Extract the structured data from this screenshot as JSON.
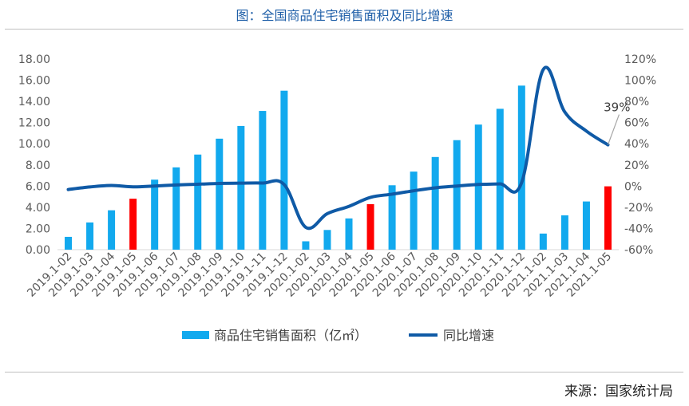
{
  "title": "图：全国商品住宅销售面积及同比增速",
  "source": "来源：国家统计局",
  "chart_data": {
    "type": "bar+line",
    "categories": [
      "2019.1-02",
      "2019.1-03",
      "2019.1-04",
      "2019.1-05",
      "2019.1-06",
      "2019.1-07",
      "2019.1-08",
      "2019.1-09",
      "2019.1-10",
      "2019.1-11",
      "2019.1-12",
      "2020.1-02",
      "2020.1-03",
      "2020.1-04",
      "2020.1-05",
      "2020.1-06",
      "2020.1-07",
      "2020.1-08",
      "2020.1-09",
      "2020.1-10",
      "2020.1-11",
      "2020.1-12",
      "2021.1-02",
      "2021.1-03",
      "2021.1-04",
      "2021.1-05"
    ],
    "series": [
      {
        "name": "商品住宅销售面积（亿㎡）",
        "axis": "left",
        "type": "bar",
        "color": "#12a9ee",
        "highlight_color": "#ff0000",
        "highlight_indices": [
          3,
          14,
          25
        ],
        "values": [
          1.21,
          2.57,
          3.72,
          4.81,
          6.61,
          7.77,
          8.98,
          10.48,
          11.68,
          13.1,
          15.01,
          0.79,
          1.86,
          2.95,
          4.3,
          6.08,
          7.37,
          8.75,
          10.34,
          11.81,
          13.3,
          15.49,
          1.52,
          3.24,
          4.55,
          5.98
        ]
      },
      {
        "name": "同比增速",
        "axis": "right",
        "type": "line",
        "color": "#0f5aa6",
        "values": [
          -3.2,
          -0.8,
          0.6,
          -0.7,
          0.1,
          1.1,
          1.8,
          2.5,
          2.8,
          2.9,
          1.5,
          -38.9,
          -26.0,
          -19.1,
          -10.6,
          -7.6,
          -4.4,
          -1.6,
          0.1,
          1.6,
          2.1,
          3.2,
          110.0,
          70.0,
          52.0,
          39.0
        ]
      }
    ],
    "y_left": {
      "ylim": [
        0,
        18
      ],
      "ticks": [
        "0.00",
        "2.00",
        "4.00",
        "6.00",
        "8.00",
        "10.00",
        "12.00",
        "14.00",
        "16.00",
        "18.00"
      ]
    },
    "y_right": {
      "ylim": [
        -60,
        120
      ],
      "ticks": [
        "-60%",
        "-40%",
        "-20%",
        "0%",
        "20%",
        "40%",
        "60%",
        "80%",
        "100%",
        "120%"
      ]
    },
    "annotation": {
      "text": "39%",
      "series": 1,
      "index": 25
    },
    "grid": false,
    "legend": "bottom"
  }
}
